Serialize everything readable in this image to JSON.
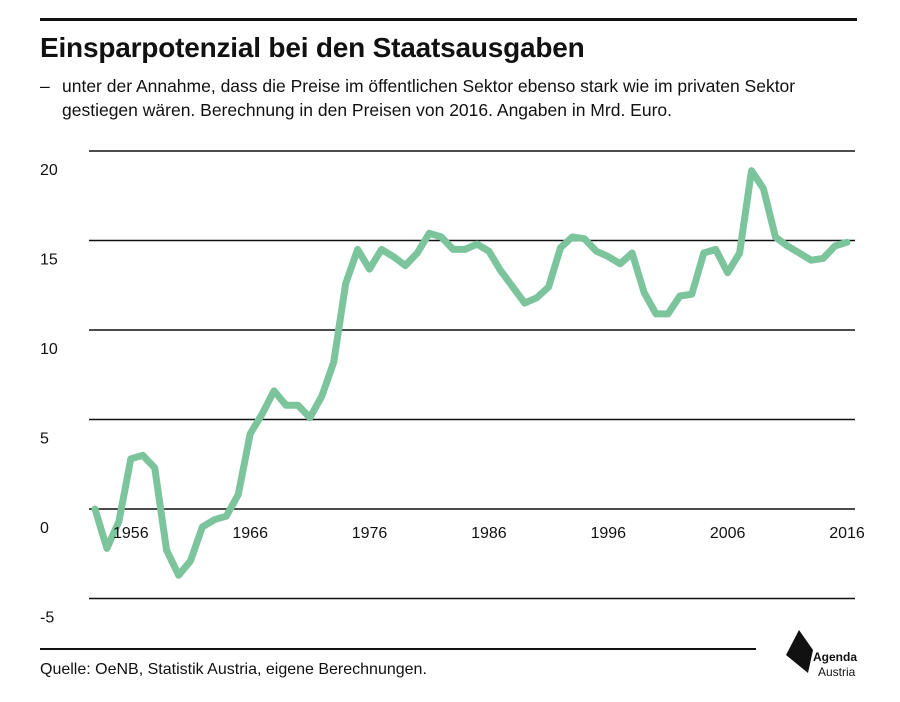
{
  "header": {
    "title": "Einsparpotenzial bei den Staatsausgaben",
    "subtitle_dash": "–",
    "subtitle": "unter der Annahme, dass die Preise im öffentlichen Sektor ebenso stark wie im privaten Sektor gestiegen wären. Berechnung in den Preisen von 2016. Angaben in Mrd. Euro."
  },
  "footer": {
    "source": "Quelle: OeNB, Statistik Austria, eigene Berechnungen.",
    "logo_line1": "Agenda",
    "logo_line2": "Austria"
  },
  "colors": {
    "line": "#7cc49c",
    "grid": "#111111",
    "text": "#111111"
  },
  "chart_data": {
    "type": "line",
    "xlim": [
      1953,
      2016
    ],
    "ylim": [
      -5,
      20
    ],
    "yticks": [
      20,
      15,
      10,
      5,
      0,
      -5
    ],
    "xticks": [
      1956,
      1966,
      1976,
      1986,
      1996,
      2006,
      2016
    ],
    "grid": "horizontal",
    "x": [
      1953,
      1954,
      1955,
      1956,
      1957,
      1958,
      1959,
      1960,
      1961,
      1962,
      1963,
      1964,
      1965,
      1966,
      1967,
      1968,
      1969,
      1970,
      1971,
      1972,
      1973,
      1974,
      1975,
      1976,
      1977,
      1978,
      1979,
      1980,
      1981,
      1982,
      1983,
      1984,
      1985,
      1986,
      1987,
      1988,
      1989,
      1990,
      1991,
      1992,
      1993,
      1994,
      1995,
      1996,
      1997,
      1998,
      1999,
      2000,
      2001,
      2002,
      2003,
      2004,
      2005,
      2006,
      2007,
      2008,
      2009,
      2010,
      2011,
      2012,
      2013,
      2014,
      2015,
      2016
    ],
    "values": [
      0.0,
      -2.2,
      -0.7,
      2.8,
      3.0,
      2.3,
      -2.3,
      -3.7,
      -2.9,
      -1.0,
      -0.6,
      -0.4,
      0.8,
      4.2,
      5.3,
      6.6,
      5.8,
      5.8,
      5.1,
      6.3,
      8.2,
      12.6,
      14.5,
      13.4,
      14.5,
      14.1,
      13.6,
      14.3,
      15.4,
      15.2,
      14.5,
      14.5,
      14.8,
      14.4,
      13.3,
      12.4,
      11.5,
      11.8,
      12.4,
      14.6,
      15.2,
      15.1,
      14.4,
      14.1,
      13.7,
      14.3,
      12.1,
      10.9,
      10.9,
      11.9,
      12.0,
      14.3,
      14.5,
      13.2,
      14.3,
      18.9,
      17.9,
      15.2,
      14.7,
      14.3,
      13.9,
      14.0,
      14.7,
      14.9
    ]
  }
}
